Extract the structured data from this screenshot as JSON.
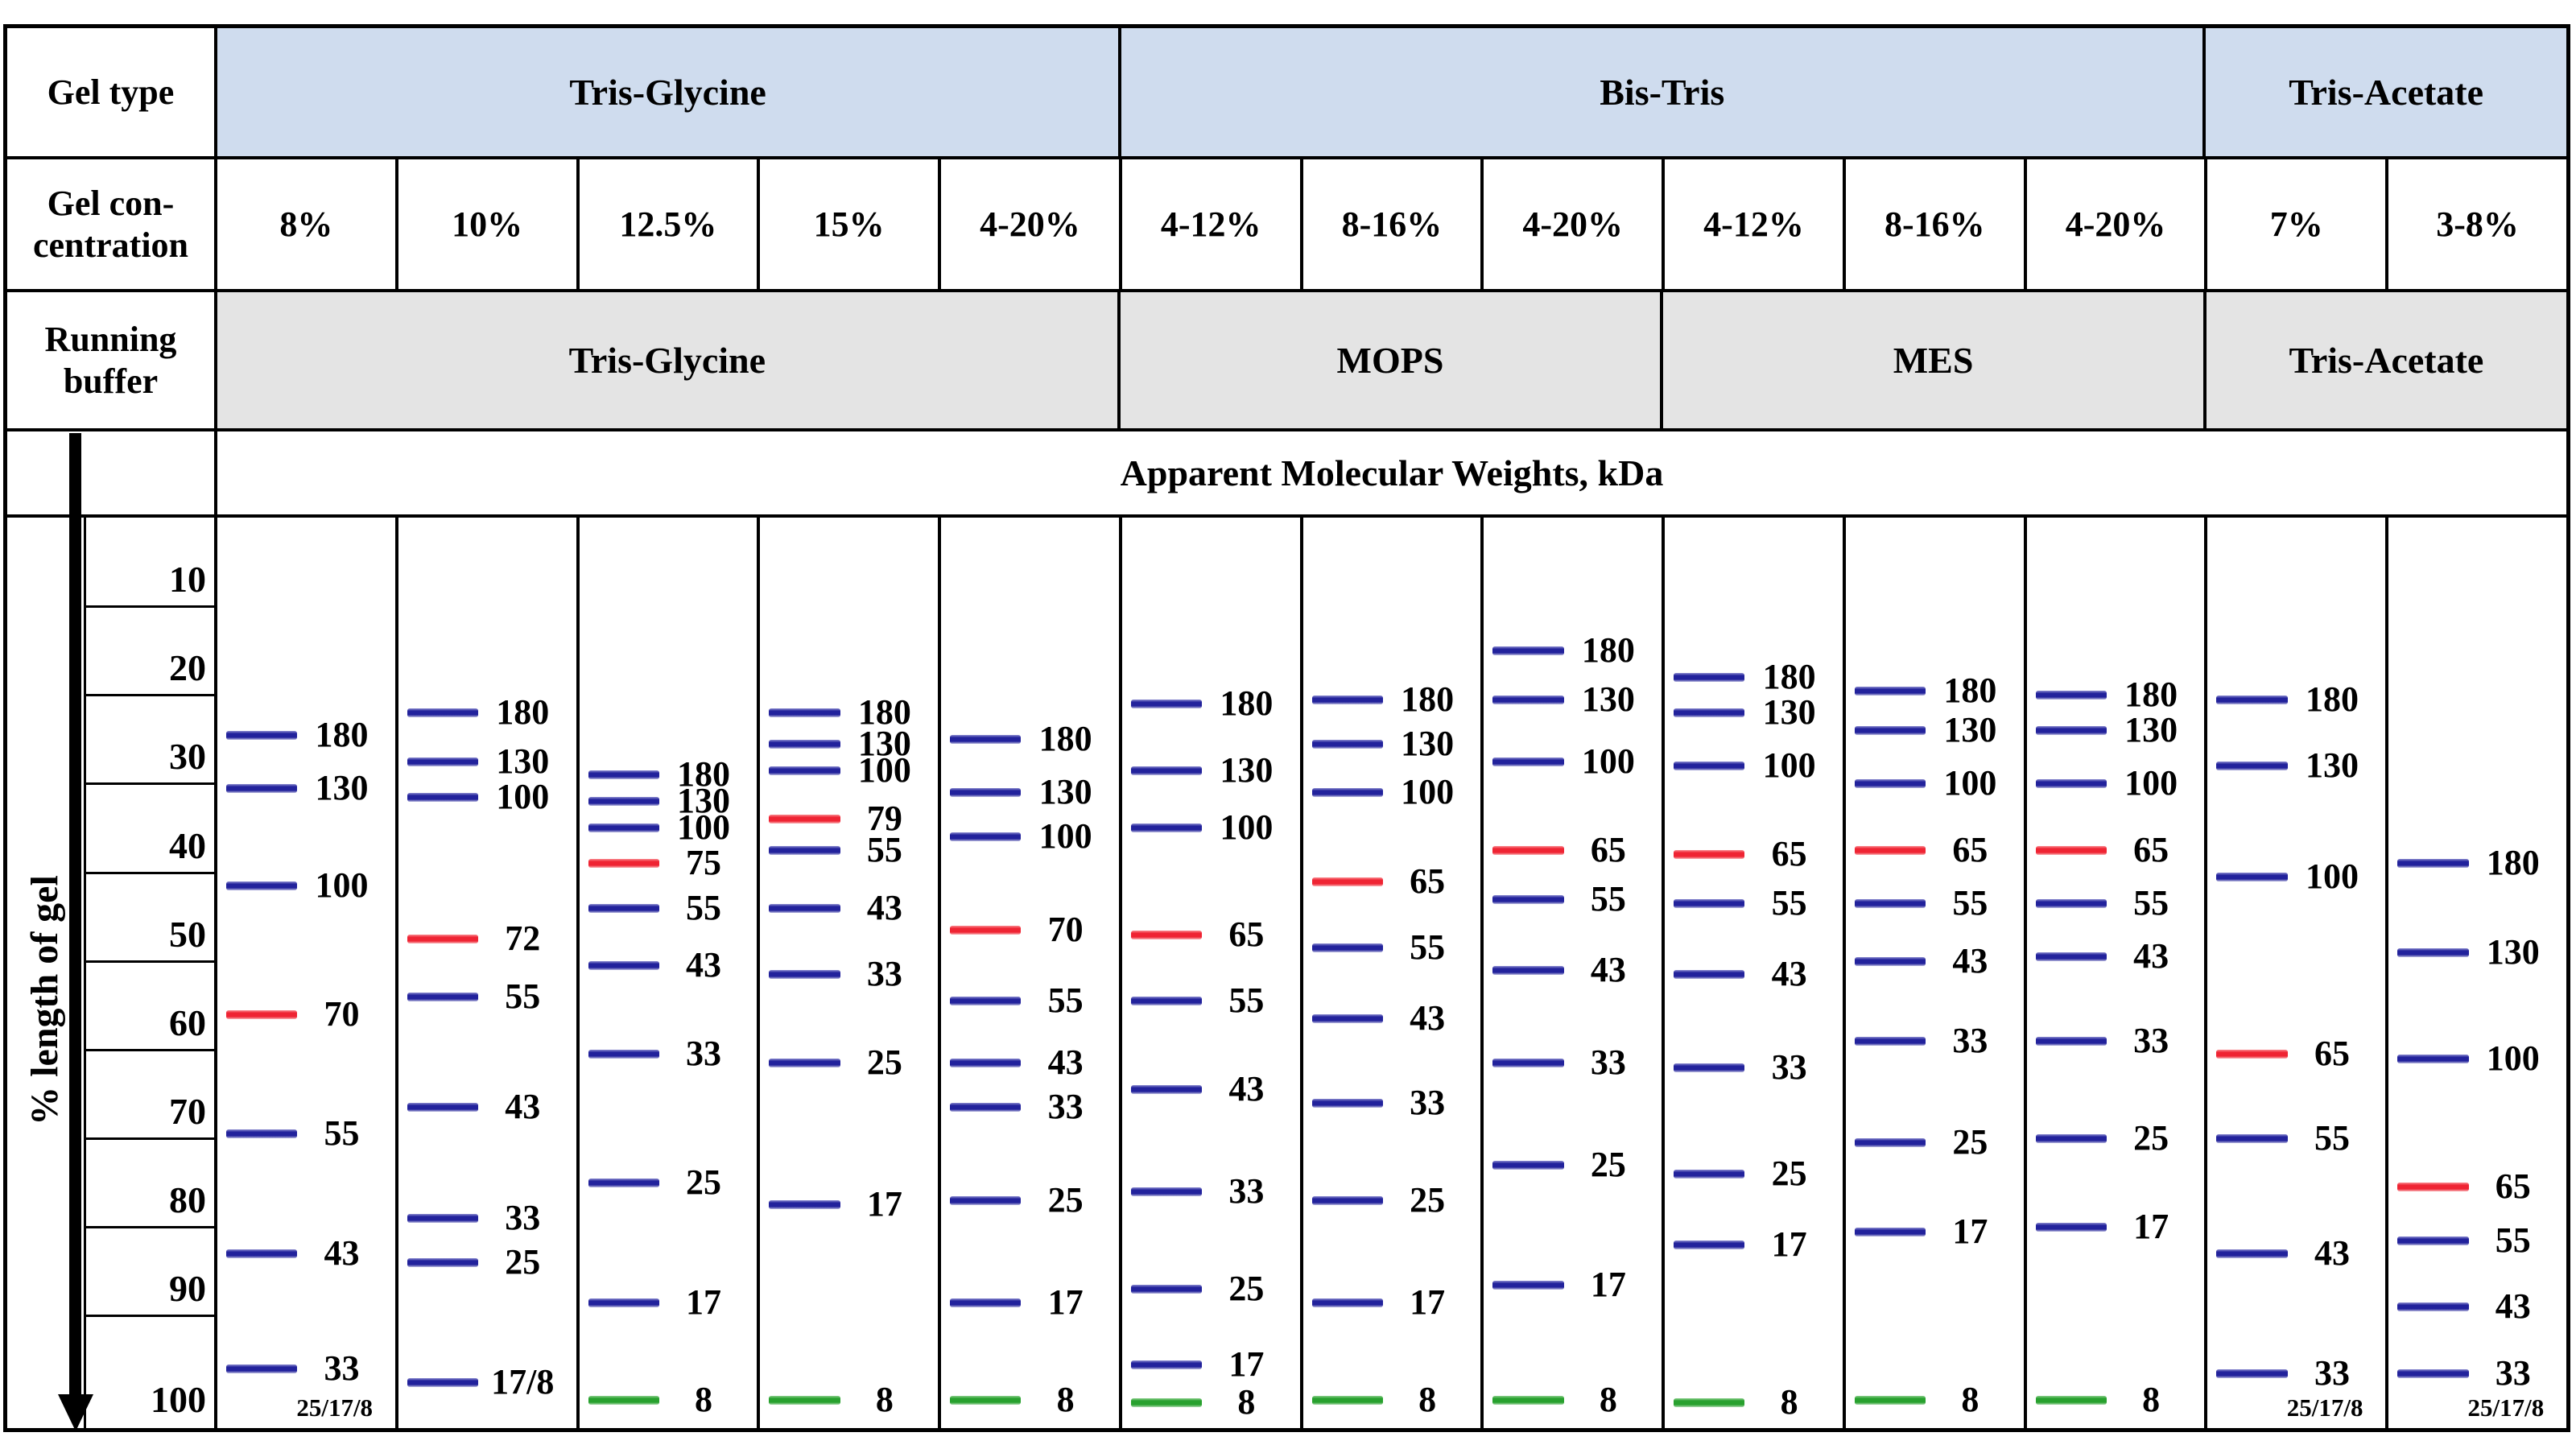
{
  "page": {
    "background": "#ffffff"
  },
  "corner": {
    "gel_type": "Gel type",
    "gel_concentration": "Gel con-\ncentration",
    "running_buffer": "Running\nbuffer"
  },
  "colors": {
    "gel_type_fill": "#cfdcee",
    "buffer_fill": "#e4e4e4",
    "border": "#000000",
    "blue": "#22229c",
    "red": "#ef2433",
    "green": "#28a12e"
  },
  "chart_data": {
    "type": "table",
    "subtype": "protein-ladder-gel-migration-figure",
    "title": "Apparent Molecular Weights, kDa",
    "y_axis": {
      "label": "% length of gel",
      "ticks": [
        10,
        20,
        30,
        40,
        50,
        60,
        70,
        80,
        90,
        100
      ],
      "range": [
        0,
        100
      ],
      "direction": "downward"
    },
    "gel_type_groups": [
      {
        "label": "Tris-Glycine",
        "span": 5
      },
      {
        "label": "Bis-Tris",
        "span": 6
      },
      {
        "label": "Tris-Acetate",
        "span": 2
      }
    ],
    "running_buffer_groups": [
      {
        "label": "Tris-Glycine",
        "span": 5
      },
      {
        "label": "MOPS",
        "span": 3
      },
      {
        "label": "MES",
        "span": 3
      },
      {
        "label": "Tris-Acetate",
        "span": 2
      }
    ],
    "lanes": [
      {
        "concentration": "8%",
        "footnote": "25/17/8",
        "footnote_pct": 100.4,
        "bands": [
          {
            "kda": "180",
            "pct": 24.5,
            "color": "blue"
          },
          {
            "kda": "130",
            "pct": 30.5,
            "color": "blue"
          },
          {
            "kda": "100",
            "pct": 41.5,
            "color": "blue"
          },
          {
            "kda": "70",
            "pct": 56,
            "color": "red"
          },
          {
            "kda": "55",
            "pct": 69.5,
            "color": "blue"
          },
          {
            "kda": "43",
            "pct": 83,
            "color": "blue"
          },
          {
            "kda": "33",
            "pct": 96,
            "color": "blue"
          }
        ]
      },
      {
        "concentration": "10%",
        "bands": [
          {
            "kda": "180",
            "pct": 22,
            "color": "blue"
          },
          {
            "kda": "130",
            "pct": 27.5,
            "color": "blue"
          },
          {
            "kda": "100",
            "pct": 31.5,
            "color": "blue"
          },
          {
            "kda": "72",
            "pct": 47.5,
            "color": "red"
          },
          {
            "kda": "55",
            "pct": 54,
            "color": "blue"
          },
          {
            "kda": "43",
            "pct": 66.5,
            "color": "blue"
          },
          {
            "kda": "33",
            "pct": 79,
            "color": "blue"
          },
          {
            "kda": "25",
            "pct": 84,
            "color": "blue"
          },
          {
            "kda": "17/8",
            "pct": 97.5,
            "color": "blue"
          }
        ]
      },
      {
        "concentration": "12.5%",
        "bands": [
          {
            "kda": "180",
            "pct": 29,
            "color": "blue"
          },
          {
            "kda": "130",
            "pct": 32,
            "color": "blue"
          },
          {
            "kda": "100",
            "pct": 35,
            "color": "blue"
          },
          {
            "kda": "75",
            "pct": 39,
            "color": "red"
          },
          {
            "kda": "55",
            "pct": 44,
            "color": "blue"
          },
          {
            "kda": "43",
            "pct": 50.5,
            "color": "blue"
          },
          {
            "kda": "33",
            "pct": 60.5,
            "color": "blue"
          },
          {
            "kda": "25",
            "pct": 75,
            "color": "blue"
          },
          {
            "kda": "17",
            "pct": 88.5,
            "color": "blue"
          },
          {
            "kda": "8",
            "pct": 99.5,
            "color": "green"
          }
        ]
      },
      {
        "concentration": "15%",
        "bands": [
          {
            "kda": "180",
            "pct": 22,
            "color": "blue"
          },
          {
            "kda": "130",
            "pct": 25.5,
            "color": "blue"
          },
          {
            "kda": "100",
            "pct": 28.5,
            "color": "blue"
          },
          {
            "kda": "79",
            "pct": 34,
            "color": "red"
          },
          {
            "kda": "55",
            "pct": 37.5,
            "color": "blue"
          },
          {
            "kda": "43",
            "pct": 44,
            "color": "blue"
          },
          {
            "kda": "33",
            "pct": 51.5,
            "color": "blue"
          },
          {
            "kda": "25",
            "pct": 61.5,
            "color": "blue"
          },
          {
            "kda": "17",
            "pct": 77.5,
            "color": "blue"
          },
          {
            "kda": "8",
            "pct": 99.5,
            "color": "green"
          }
        ]
      },
      {
        "concentration": "4-20%",
        "bands": [
          {
            "kda": "180",
            "pct": 25,
            "color": "blue"
          },
          {
            "kda": "130",
            "pct": 31,
            "color": "blue"
          },
          {
            "kda": "100",
            "pct": 36,
            "color": "blue"
          },
          {
            "kda": "70",
            "pct": 46.5,
            "color": "red"
          },
          {
            "kda": "55",
            "pct": 54.5,
            "color": "blue"
          },
          {
            "kda": "43",
            "pct": 61.5,
            "color": "blue"
          },
          {
            "kda": "33",
            "pct": 66.5,
            "color": "blue"
          },
          {
            "kda": "25",
            "pct": 77,
            "color": "blue"
          },
          {
            "kda": "17",
            "pct": 88.5,
            "color": "blue"
          },
          {
            "kda": "8",
            "pct": 99.5,
            "color": "green"
          }
        ]
      },
      {
        "concentration": "4-12%",
        "bands": [
          {
            "kda": "180",
            "pct": 21,
            "color": "blue"
          },
          {
            "kda": "130",
            "pct": 28.5,
            "color": "blue"
          },
          {
            "kda": "100",
            "pct": 35,
            "color": "blue"
          },
          {
            "kda": "65",
            "pct": 47,
            "color": "red"
          },
          {
            "kda": "55",
            "pct": 54.5,
            "color": "blue"
          },
          {
            "kda": "43",
            "pct": 64.5,
            "color": "blue"
          },
          {
            "kda": "33",
            "pct": 76,
            "color": "blue"
          },
          {
            "kda": "25",
            "pct": 87,
            "color": "blue"
          },
          {
            "kda": "17",
            "pct": 95.5,
            "color": "blue"
          },
          {
            "kda": "8",
            "pct": 99.8,
            "color": "green"
          }
        ]
      },
      {
        "concentration": "8-16%",
        "bands": [
          {
            "kda": "180",
            "pct": 20.5,
            "color": "blue"
          },
          {
            "kda": "130",
            "pct": 25.5,
            "color": "blue"
          },
          {
            "kda": "100",
            "pct": 31,
            "color": "blue"
          },
          {
            "kda": "65",
            "pct": 41,
            "color": "red"
          },
          {
            "kda": "55",
            "pct": 48.5,
            "color": "blue"
          },
          {
            "kda": "43",
            "pct": 56.5,
            "color": "blue"
          },
          {
            "kda": "33",
            "pct": 66,
            "color": "blue"
          },
          {
            "kda": "25",
            "pct": 77,
            "color": "blue"
          },
          {
            "kda": "17",
            "pct": 88.5,
            "color": "blue"
          },
          {
            "kda": "8",
            "pct": 99.5,
            "color": "green"
          }
        ]
      },
      {
        "concentration": "4-20%",
        "bands": [
          {
            "kda": "180",
            "pct": 15,
            "color": "blue"
          },
          {
            "kda": "130",
            "pct": 20.5,
            "color": "blue"
          },
          {
            "kda": "100",
            "pct": 27.5,
            "color": "blue"
          },
          {
            "kda": "65",
            "pct": 37.5,
            "color": "red"
          },
          {
            "kda": "55",
            "pct": 43,
            "color": "blue"
          },
          {
            "kda": "43",
            "pct": 51,
            "color": "blue"
          },
          {
            "kda": "33",
            "pct": 61.5,
            "color": "blue"
          },
          {
            "kda": "25",
            "pct": 73,
            "color": "blue"
          },
          {
            "kda": "17",
            "pct": 86.5,
            "color": "blue"
          },
          {
            "kda": "8",
            "pct": 99.5,
            "color": "green"
          }
        ]
      },
      {
        "concentration": "4-12%",
        "bands": [
          {
            "kda": "180",
            "pct": 18,
            "color": "blue"
          },
          {
            "kda": "130",
            "pct": 22,
            "color": "blue"
          },
          {
            "kda": "100",
            "pct": 28,
            "color": "blue"
          },
          {
            "kda": "65",
            "pct": 38,
            "color": "red"
          },
          {
            "kda": "55",
            "pct": 43.5,
            "color": "blue"
          },
          {
            "kda": "43",
            "pct": 51.5,
            "color": "blue"
          },
          {
            "kda": "33",
            "pct": 62,
            "color": "blue"
          },
          {
            "kda": "25",
            "pct": 74,
            "color": "blue"
          },
          {
            "kda": "17",
            "pct": 82,
            "color": "blue"
          },
          {
            "kda": "8",
            "pct": 99.8,
            "color": "green"
          }
        ]
      },
      {
        "concentration": "8-16%",
        "bands": [
          {
            "kda": "180",
            "pct": 19.5,
            "color": "blue"
          },
          {
            "kda": "130",
            "pct": 24,
            "color": "blue"
          },
          {
            "kda": "100",
            "pct": 30,
            "color": "blue"
          },
          {
            "kda": "65",
            "pct": 37.5,
            "color": "red"
          },
          {
            "kda": "55",
            "pct": 43.5,
            "color": "blue"
          },
          {
            "kda": "43",
            "pct": 50,
            "color": "blue"
          },
          {
            "kda": "33",
            "pct": 59,
            "color": "blue"
          },
          {
            "kda": "25",
            "pct": 70.5,
            "color": "blue"
          },
          {
            "kda": "17",
            "pct": 80.5,
            "color": "blue"
          },
          {
            "kda": "8",
            "pct": 99.5,
            "color": "green"
          }
        ]
      },
      {
        "concentration": "4-20%",
        "bands": [
          {
            "kda": "180",
            "pct": 20,
            "color": "blue"
          },
          {
            "kda": "130",
            "pct": 24,
            "color": "blue"
          },
          {
            "kda": "100",
            "pct": 30,
            "color": "blue"
          },
          {
            "kda": "65",
            "pct": 37.5,
            "color": "red"
          },
          {
            "kda": "55",
            "pct": 43.5,
            "color": "blue"
          },
          {
            "kda": "43",
            "pct": 49.5,
            "color": "blue"
          },
          {
            "kda": "33",
            "pct": 59,
            "color": "blue"
          },
          {
            "kda": "25",
            "pct": 70,
            "color": "blue"
          },
          {
            "kda": "17",
            "pct": 80,
            "color": "blue"
          },
          {
            "kda": "8",
            "pct": 99.5,
            "color": "green"
          }
        ]
      },
      {
        "concentration": "7%",
        "footnote": "25/17/8",
        "footnote_pct": 100.4,
        "bands": [
          {
            "kda": "180",
            "pct": 20.5,
            "color": "blue"
          },
          {
            "kda": "130",
            "pct": 28,
            "color": "blue"
          },
          {
            "kda": "100",
            "pct": 40.5,
            "color": "blue"
          },
          {
            "kda": "65",
            "pct": 60.5,
            "color": "red"
          },
          {
            "kda": "55",
            "pct": 70,
            "color": "blue"
          },
          {
            "kda": "43",
            "pct": 83,
            "color": "blue"
          },
          {
            "kda": "33",
            "pct": 96.5,
            "color": "blue"
          }
        ]
      },
      {
        "concentration": "3-8%",
        "footnote": "25/17/8",
        "footnote_pct": 100.4,
        "bands": [
          {
            "kda": "180",
            "pct": 39,
            "color": "blue"
          },
          {
            "kda": "130",
            "pct": 49,
            "color": "blue"
          },
          {
            "kda": "100",
            "pct": 61,
            "color": "blue"
          },
          {
            "kda": "65",
            "pct": 75.5,
            "color": "red"
          },
          {
            "kda": "55",
            "pct": 81.5,
            "color": "blue"
          },
          {
            "kda": "43",
            "pct": 89,
            "color": "blue"
          },
          {
            "kda": "33",
            "pct": 96.5,
            "color": "blue"
          }
        ]
      }
    ]
  }
}
